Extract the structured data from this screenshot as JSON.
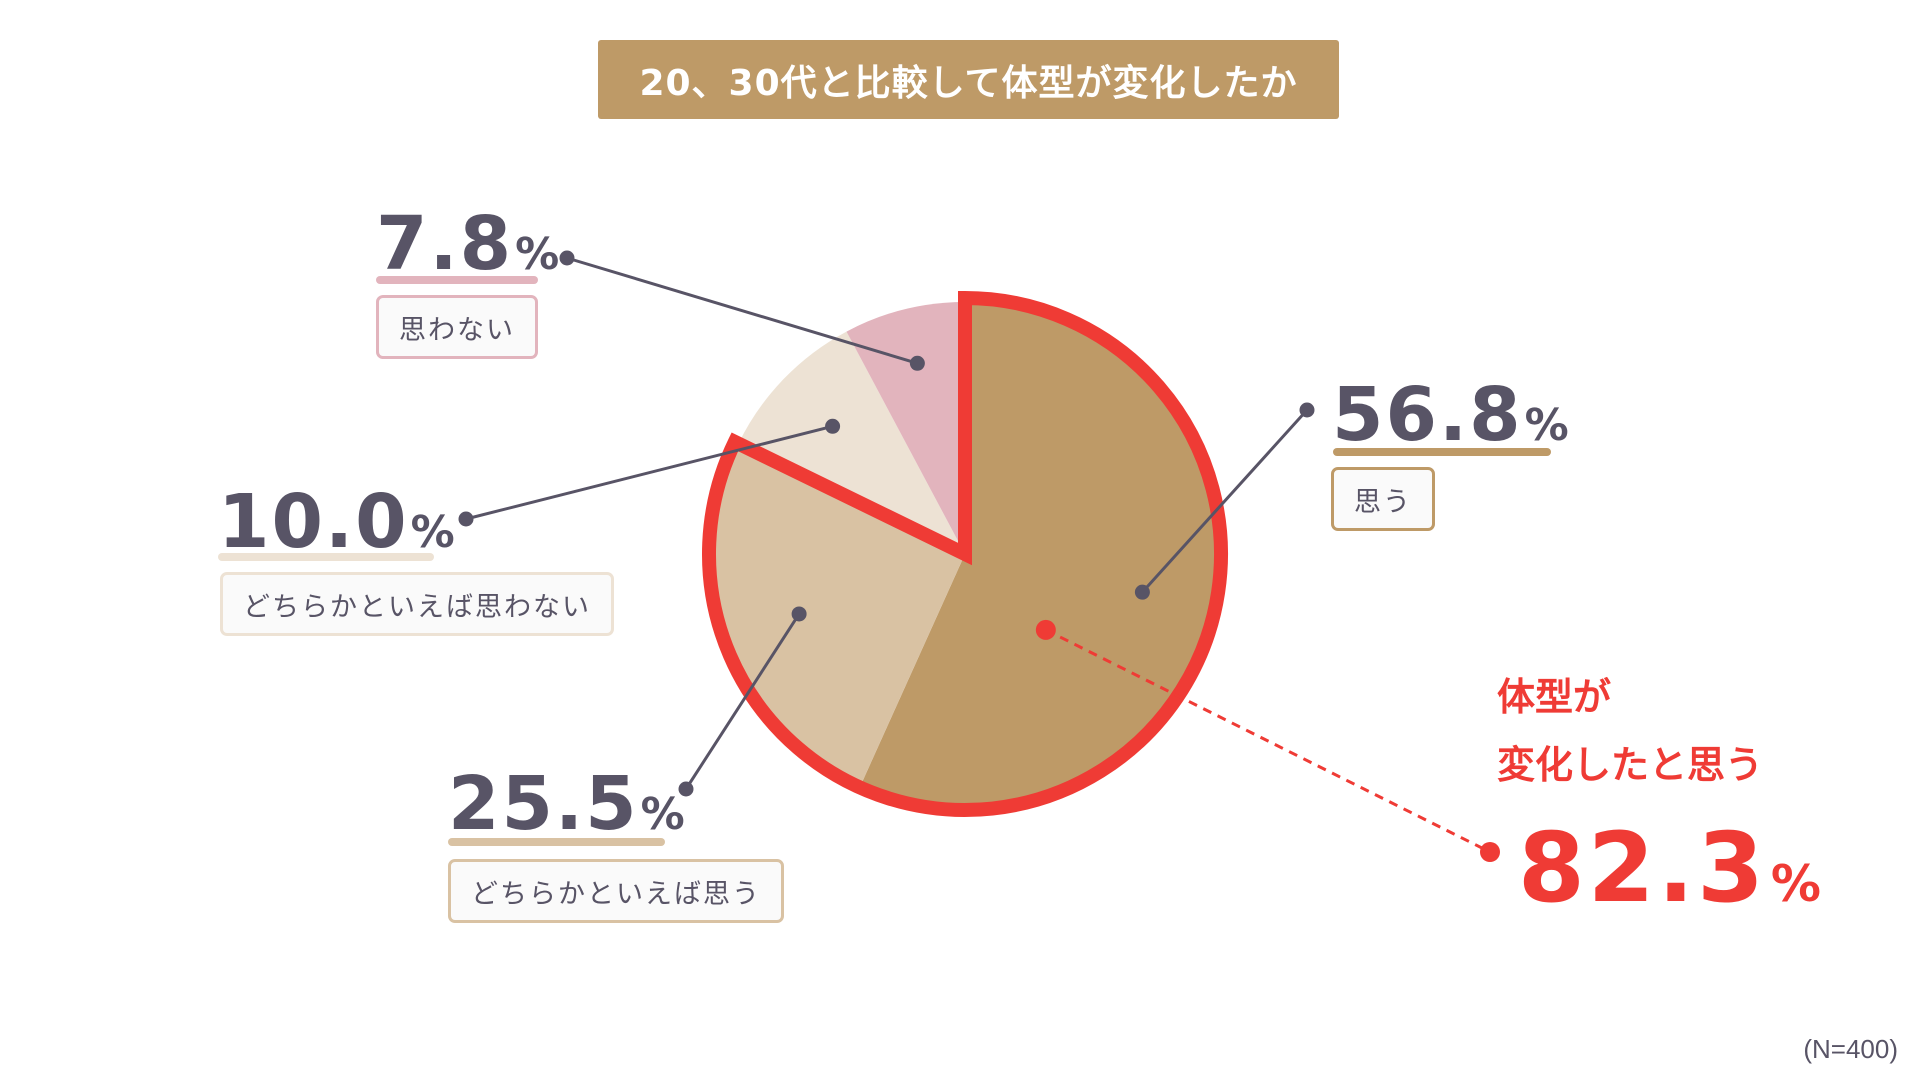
{
  "title": "20、30代と比較して体型が変化したか",
  "sample_note": "(N=400)",
  "highlight": {
    "line1": "体型が",
    "line2": "変化したと思う",
    "value": "82.3",
    "unit": "%"
  },
  "colors": {
    "title_bg": "#be9a67",
    "highlight": "#ef3b35",
    "text": "#585466"
  },
  "chart_data": {
    "type": "pie",
    "title": "20、30代と比較して体型が変化したか",
    "unit": "%",
    "slices": [
      {
        "label": "思う",
        "value": 56.8,
        "value_text": "56.8",
        "color": "#be9a67"
      },
      {
        "label": "どちらかといえば思う",
        "value": 25.5,
        "value_text": "25.5",
        "color": "#d9c2a3"
      },
      {
        "label": "どちらかといえば思わない",
        "value": 10.0,
        "value_text": "10.0",
        "color": "#ede2d4"
      },
      {
        "label": "思わない",
        "value": 7.8,
        "value_text": "7.8",
        "color": "#e2b4bd"
      }
    ],
    "highlight_group": {
      "label": "体型が変化したと思う",
      "value": 82.3,
      "members": [
        "思う",
        "どちらかといえば思う"
      ]
    }
  }
}
